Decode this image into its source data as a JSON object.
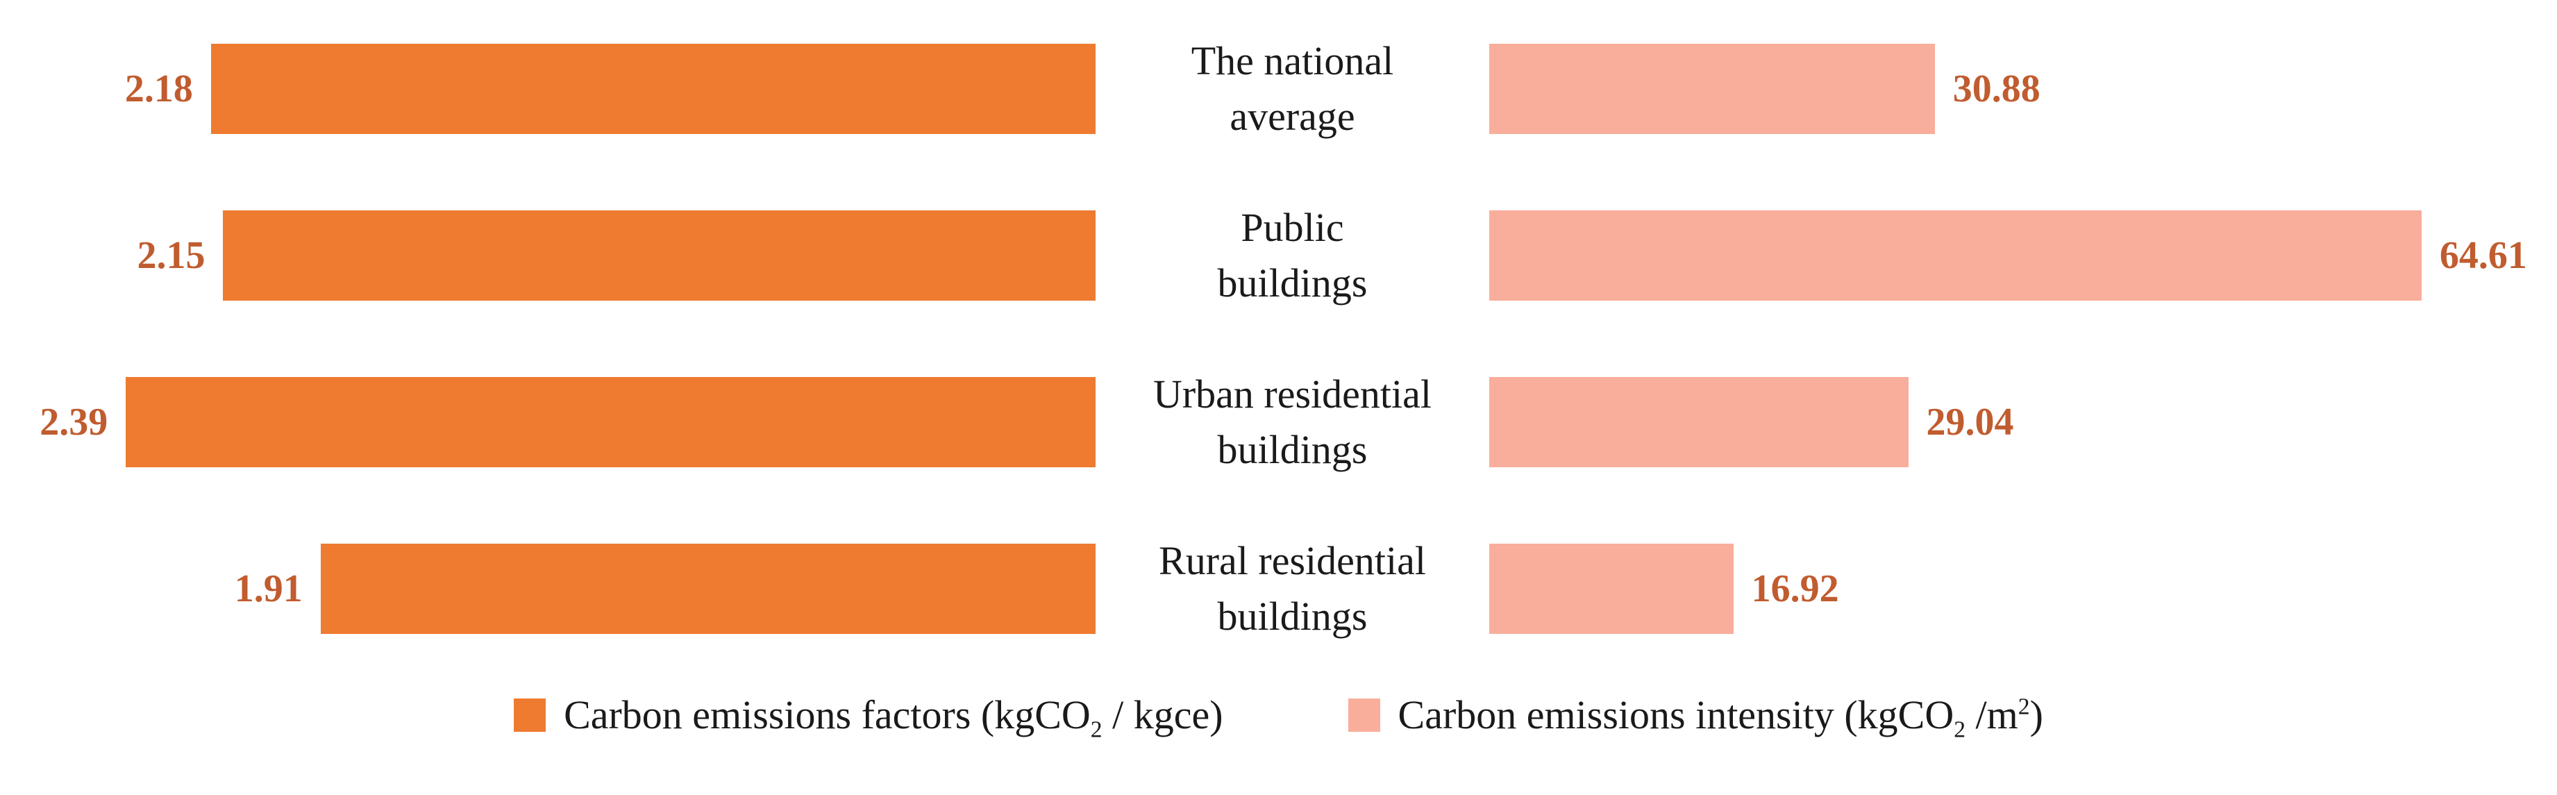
{
  "chart_data": {
    "type": "bar",
    "variant": "diverging-horizontal-tornado",
    "title": "",
    "grid": false,
    "legend_position": "bottom",
    "categories": [
      "The national\naverage",
      "Public\nbuildings",
      "Urban residential\nbuildings",
      "Rural residential\nbuildings"
    ],
    "series": [
      {
        "name": "Carbon emissions factors (kgCO2 / kgce)",
        "side": "left",
        "values": [
          2.18,
          2.15,
          2.39,
          1.91
        ],
        "axis_min": 0,
        "axis_max": 2.7,
        "color": "#EE7B30"
      },
      {
        "name": "Carbon emissions intensity (kgCO2 /m2)",
        "side": "right",
        "values": [
          30.88,
          64.61,
          29.04,
          16.92
        ],
        "axis_min": 0,
        "axis_max": 74,
        "color": "#F9AE9B"
      }
    ],
    "value_labels": {
      "left": [
        "2.18",
        "2.15",
        "2.39",
        "1.91"
      ],
      "right": [
        "30.88",
        "64.61",
        "29.04",
        "16.92"
      ],
      "color": "#C05C2F"
    },
    "legend": {
      "items": [
        {
          "pre": "Carbon emissions factors (kgCO",
          "sub": "2",
          "mid": " / kgce)",
          "sup": "",
          "post": ""
        },
        {
          "pre": "Carbon emissions intensity (kgCO",
          "sub": "2",
          "mid": " /m",
          "sup": "2",
          "post": ")"
        }
      ]
    },
    "colors": {
      "factors_bar": "#EE7B30",
      "intensity_bar": "#F9AE9B",
      "value_label": "#C05C2F",
      "category_text": "#1A1A1A"
    }
  }
}
